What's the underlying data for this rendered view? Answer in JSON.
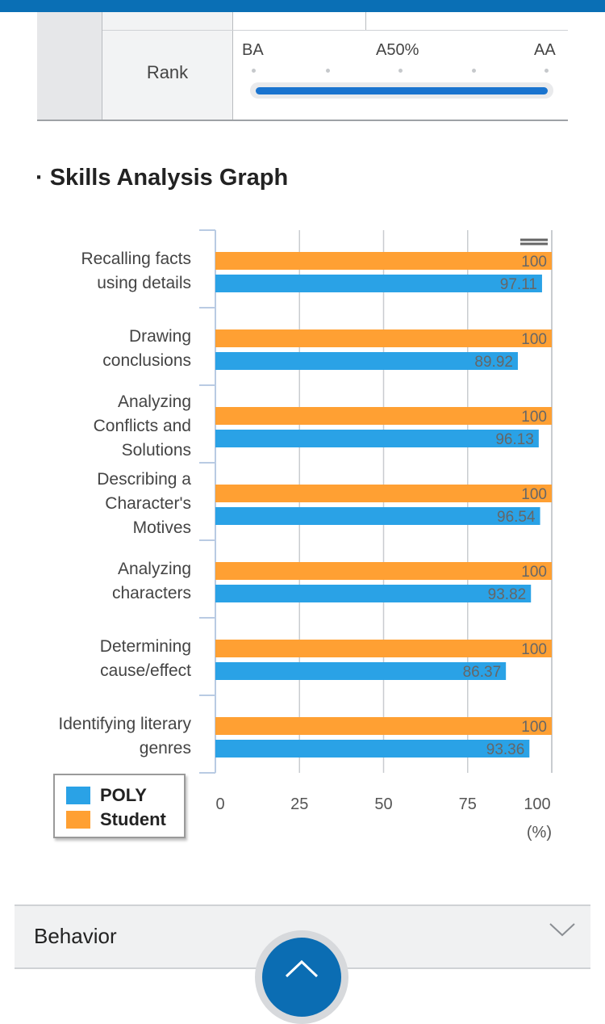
{
  "colors": {
    "accent": "#0a6fb5",
    "student": "#ffa033",
    "poly": "#2aa2e6",
    "rank_fill": "#1a74cf"
  },
  "rank": {
    "label": "Rank",
    "ticks": [
      "BA",
      "A50%",
      "AA"
    ],
    "progress": 1.0
  },
  "section_title": "Skills Analysis Graph",
  "chart_data": {
    "type": "bar",
    "orientation": "horizontal",
    "categories": [
      [
        "Recalling facts",
        "using details"
      ],
      [
        "Drawing",
        "conclusions"
      ],
      [
        "Analyzing",
        "Conflicts and",
        "Solutions"
      ],
      [
        "Describing a",
        "Character's",
        "Motives"
      ],
      [
        "Analyzing",
        "characters"
      ],
      [
        "Determining",
        "cause/effect"
      ],
      [
        "Identifying literary",
        "genres"
      ]
    ],
    "series": [
      {
        "name": "Student",
        "values": [
          100,
          100,
          100,
          100,
          100,
          100,
          100
        ]
      },
      {
        "name": "POLY",
        "values": [
          97.11,
          89.92,
          96.13,
          96.54,
          93.82,
          86.37,
          93.36
        ]
      }
    ],
    "value_labels": [
      [
        "100",
        "100",
        "100",
        "100",
        "100",
        "100",
        "100"
      ],
      [
        "97.11",
        "89.92",
        "96.13",
        "96.54",
        "93.82",
        "86.37",
        "93.36"
      ]
    ],
    "xlim": [
      0,
      100
    ],
    "xticks": [
      "0",
      "25",
      "50",
      "75",
      "100"
    ],
    "xunit": "(%)",
    "grid": true,
    "legend_position": "bottom-left"
  },
  "legend": [
    {
      "label": "POLY",
      "color": "#2aa2e6"
    },
    {
      "label": "Student",
      "color": "#ffa033"
    }
  ],
  "behavior": {
    "label": "Behavior"
  },
  "icons": {
    "chevron": "chevron-down-icon",
    "scroll_top": "arrow-up-icon",
    "menu": "menu-icon"
  }
}
